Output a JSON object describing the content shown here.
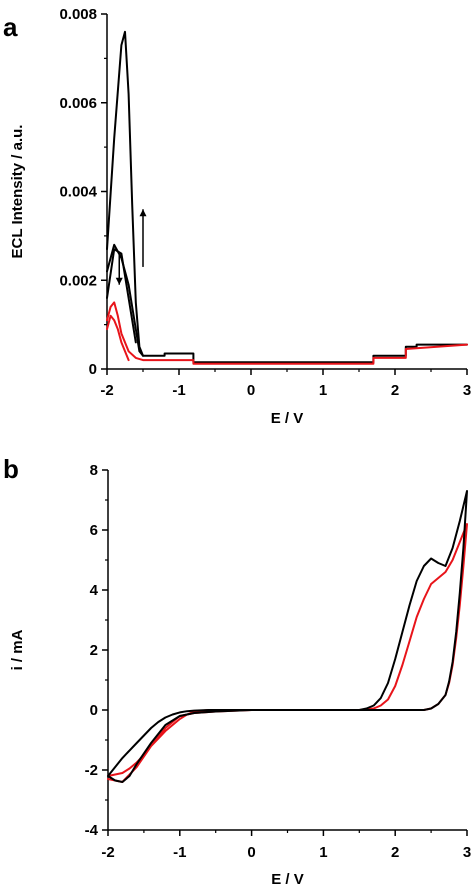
{
  "chart_data": [
    {
      "panel": "a",
      "type": "line",
      "xlabel": "E / V",
      "ylabel": "ECL Intensity / a.u.",
      "xlim": [
        -2,
        3
      ],
      "ylim": [
        0,
        0.008
      ],
      "xticks": [
        -2,
        -1,
        0,
        1,
        2,
        3
      ],
      "yticks": [
        0,
        0.002,
        0.004,
        0.006,
        0.008
      ],
      "ytick_labels": [
        "0",
        "0.002",
        "0.004",
        "0.006",
        "0.008"
      ],
      "grid": false,
      "annotations": [
        {
          "type": "arrow",
          "direction": "up",
          "x": -1.5,
          "y_from": 0.0023,
          "y_to": 0.0036
        },
        {
          "type": "arrow",
          "direction": "down",
          "x": -1.83,
          "y_from": 0.0026,
          "y_to": 0.0019
        }
      ],
      "series": [
        {
          "color": "#000000",
          "x": [
            -2.0,
            -1.9,
            -1.8,
            -1.75,
            -1.7,
            -1.65,
            -1.6,
            -1.55,
            -1.5,
            -1.2,
            -1.2,
            -0.8,
            -0.8,
            1.7,
            1.7,
            2.15,
            2.15,
            2.3,
            2.3,
            3.0
          ],
          "y": [
            0.0027,
            0.0052,
            0.0073,
            0.0076,
            0.0062,
            0.0037,
            0.0015,
            0.0005,
            0.0003,
            0.0003,
            0.00035,
            0.00035,
            0.00015,
            0.00015,
            0.0003,
            0.0003,
            0.0005,
            0.0005,
            0.00055,
            0.00055
          ]
        },
        {
          "color": "#000000",
          "x": [
            -2.0,
            -1.9,
            -1.8,
            -1.7,
            -1.6,
            -1.55,
            -1.5
          ],
          "y": [
            0.0022,
            0.0028,
            0.0025,
            0.0019,
            0.0009,
            0.0004,
            0.0003
          ]
        },
        {
          "color": "#000000",
          "x": [
            -2.0,
            -1.9,
            -1.8,
            -1.7,
            -1.6
          ],
          "y": [
            0.0016,
            0.0027,
            0.0026,
            0.0016,
            0.0006
          ]
        },
        {
          "color": "#e8141a",
          "x": [
            -2.0,
            -1.95,
            -1.9,
            -1.85,
            -1.8,
            -1.7,
            -1.6,
            -1.5,
            -0.8,
            -0.8,
            1.7,
            1.7,
            2.15,
            2.15,
            3.0
          ],
          "y": [
            0.0011,
            0.0014,
            0.0015,
            0.0012,
            0.0008,
            0.0004,
            0.00025,
            0.0002,
            0.0002,
            0.00012,
            0.00012,
            0.00025,
            0.00025,
            0.00045,
            0.00055
          ]
        },
        {
          "color": "#e8141a",
          "x": [
            -2.0,
            -1.95,
            -1.9,
            -1.85,
            -1.8,
            -1.75,
            -1.7
          ],
          "y": [
            0.0009,
            0.0012,
            0.0011,
            0.0009,
            0.0006,
            0.0004,
            0.0002
          ]
        }
      ]
    },
    {
      "panel": "b",
      "type": "line",
      "xlabel": "E / V",
      "ylabel": "i / mA",
      "xlim": [
        -2,
        3
      ],
      "ylim": [
        -4,
        8
      ],
      "xticks": [
        -2,
        -1,
        0,
        1,
        2,
        3
      ],
      "yticks": [
        -4,
        -2,
        0,
        2,
        4,
        6,
        8
      ],
      "ytick_labels": [
        "-4",
        "-2",
        "0",
        "2",
        "4",
        "6",
        "8"
      ],
      "grid": false,
      "series": [
        {
          "color": "#e8141a",
          "x": [
            -2.0,
            -1.9,
            -1.8,
            -1.7,
            -1.6,
            -1.5,
            -1.4,
            -1.3,
            -1.2,
            -1.1,
            -1.0,
            -0.9,
            -0.8,
            -0.6,
            -0.4,
            -0.2,
            0.0,
            0.5,
            1.0,
            1.5,
            1.7,
            1.8,
            1.9,
            2.0,
            2.1,
            2.2,
            2.3,
            2.4,
            2.5,
            2.6,
            2.7,
            2.8,
            2.9,
            3.0,
            2.95,
            2.9,
            2.85,
            2.8,
            2.75,
            2.7,
            2.6,
            2.5,
            2.4,
            2.3,
            2.2,
            2.0,
            1.5,
            1.0,
            0.0,
            -0.5,
            -0.8,
            -1.0,
            -1.2,
            -1.4,
            -1.6,
            -1.8,
            -1.9,
            -2.0
          ],
          "y": [
            -2.2,
            -2.15,
            -2.1,
            -1.95,
            -1.75,
            -1.5,
            -1.2,
            -0.95,
            -0.7,
            -0.5,
            -0.3,
            -0.15,
            -0.05,
            0.0,
            0.0,
            0.0,
            0.0,
            0.0,
            0.0,
            0.0,
            0.05,
            0.15,
            0.35,
            0.8,
            1.5,
            2.3,
            3.1,
            3.7,
            4.2,
            4.4,
            4.6,
            5.0,
            5.6,
            6.2,
            4.8,
            3.5,
            2.4,
            1.5,
            0.9,
            0.5,
            0.2,
            0.05,
            0.0,
            0.0,
            0.0,
            0.0,
            0.0,
            0.0,
            0.0,
            -0.05,
            -0.1,
            -0.2,
            -0.6,
            -1.2,
            -1.9,
            -2.4,
            -2.35,
            -2.3
          ]
        },
        {
          "color": "#000000",
          "x": [
            -2.0,
            -1.9,
            -1.8,
            -1.7,
            -1.6,
            -1.5,
            -1.4,
            -1.3,
            -1.2,
            -1.1,
            -1.0,
            -0.9,
            -0.8,
            -0.6,
            -0.4,
            0.0,
            0.5,
            1.0,
            1.5,
            1.6,
            1.7,
            1.8,
            1.9,
            2.0,
            2.1,
            2.2,
            2.3,
            2.4,
            2.5,
            2.6,
            2.7,
            2.8,
            2.9,
            3.0,
            2.95,
            2.9,
            2.85,
            2.8,
            2.75,
            2.7,
            2.6,
            2.5,
            2.4,
            2.3,
            2.0,
            1.5,
            1.0,
            0.0,
            -0.5,
            -0.8,
            -1.0,
            -1.2,
            -1.4,
            -1.6,
            -1.7,
            -1.8,
            -1.9,
            -2.0
          ],
          "y": [
            -2.2,
            -1.9,
            -1.6,
            -1.35,
            -1.1,
            -0.85,
            -0.6,
            -0.4,
            -0.25,
            -0.15,
            -0.08,
            -0.04,
            -0.02,
            0.0,
            0.0,
            0.0,
            0.0,
            0.0,
            0.0,
            0.05,
            0.15,
            0.4,
            0.9,
            1.7,
            2.6,
            3.5,
            4.3,
            4.8,
            5.05,
            4.9,
            4.8,
            5.4,
            6.3,
            7.3,
            5.4,
            3.9,
            2.6,
            1.6,
            0.95,
            0.5,
            0.2,
            0.05,
            0.0,
            0.0,
            0.0,
            0.0,
            0.0,
            0.0,
            -0.05,
            -0.1,
            -0.2,
            -0.5,
            -1.1,
            -1.8,
            -2.2,
            -2.4,
            -2.35,
            -2.2
          ]
        }
      ]
    }
  ]
}
